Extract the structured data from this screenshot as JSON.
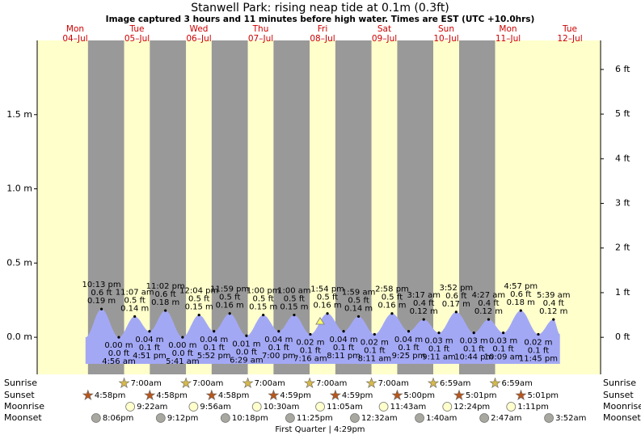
{
  "chart_data": {
    "type": "tide",
    "title": "Stanwell Park: rising  neap tide at 0.1m (0.3ft)",
    "subtitle": "Image captured 3 hours and 11 minutes before high water. Times are EST (UTC +10.0hrs)",
    "days": [
      {
        "weekday": "Mon",
        "date": "04–Jul"
      },
      {
        "weekday": "Tue",
        "date": "05–Jul"
      },
      {
        "weekday": "Wed",
        "date": "06–Jul"
      },
      {
        "weekday": "Thu",
        "date": "07–Jul"
      },
      {
        "weekday": "Fri",
        "date": "08–Jul"
      },
      {
        "weekday": "Sat",
        "date": "09–Jul"
      },
      {
        "weekday": "Sun",
        "date": "10–Jul"
      },
      {
        "weekday": "Mon",
        "date": "11–Jul"
      },
      {
        "weekday": "Tue",
        "date": "12–Jul"
      }
    ],
    "ylim": [
      -0.25,
      2.0
    ],
    "yticks": [
      {
        "value": 0,
        "label": "0.0 m"
      },
      {
        "value": 0.5,
        "label": "0.5 m"
      },
      {
        "value": 1,
        "label": "1.0 m"
      },
      {
        "value": 1.5,
        "label": "1.5 m"
      }
    ],
    "y2lim": [
      -0.83,
      6.65
    ],
    "y2ticks": [
      {
        "value": 0,
        "label": "0 ft"
      },
      {
        "value": 1,
        "label": "1 ft"
      },
      {
        "value": 2,
        "label": "2 ft"
      },
      {
        "value": 3,
        "label": "3 ft"
      },
      {
        "value": 4,
        "label": "4 ft"
      },
      {
        "value": 5,
        "label": "5 ft"
      },
      {
        "value": 6,
        "label": "6 ft"
      }
    ],
    "color": "#a3a8f5",
    "tides": [
      {
        "time": "10:13 pm",
        "value": 0.19,
        "value_label": "0.19 m",
        "ft_label": "0.6 ft"
      },
      {
        "time": "4:56 am",
        "value": 0.0,
        "value_label": "0.00 m",
        "ft_label": "0.0 ft"
      },
      {
        "time": "11:07 am",
        "value": 0.14,
        "value_label": "0.14 m",
        "ft_label": "0.5 ft"
      },
      {
        "time": "4:51 pm",
        "value": 0.04,
        "value_label": "0.04 m",
        "ft_label": "0.1 ft"
      },
      {
        "time": "11:02 pm",
        "value": 0.18,
        "value_label": "0.18 m",
        "ft_label": "0.6 ft"
      },
      {
        "time": "5:41 am",
        "value": 0.0,
        "value_label": "0.00 m",
        "ft_label": "0.0 ft"
      },
      {
        "time": "12:04 pm",
        "value": 0.15,
        "value_label": "0.15 m",
        "ft_label": "0.5 ft"
      },
      {
        "time": "5:52 pm",
        "value": 0.04,
        "value_label": "0.04 m",
        "ft_label": "0.1 ft"
      },
      {
        "time": "11:59 pm",
        "value": 0.16,
        "value_label": "0.16 m",
        "ft_label": "0.5 ft"
      },
      {
        "time": "6:29 am",
        "value": 0.01,
        "value_label": "0.01 m",
        "ft_label": "0.0 ft"
      },
      {
        "time": "1:00 pm",
        "value": 0.15,
        "value_label": "0.15 m",
        "ft_label": "0.5 ft"
      },
      {
        "time": "7:00 pm",
        "value": 0.04,
        "value_label": "0.04 m",
        "ft_label": "0.1 ft"
      },
      {
        "time": "1:00 am",
        "value": 0.15,
        "value_label": "0.15 m",
        "ft_label": "0.5 ft"
      },
      {
        "time": "7:16 am",
        "value": 0.02,
        "value_label": "0.02 m",
        "ft_label": "0.1 ft"
      },
      {
        "time": "1:54 pm",
        "value": 0.16,
        "value_label": "0.16 m",
        "ft_label": "0.5 ft"
      },
      {
        "time": "8:11 pm",
        "value": 0.04,
        "value_label": "0.04 m",
        "ft_label": "0.1 ft"
      },
      {
        "time": "1:59 am",
        "value": 0.14,
        "value_label": "0.14 m",
        "ft_label": "0.5 ft"
      },
      {
        "time": "8:11 am",
        "value": 0.02,
        "value_label": "0.02 m",
        "ft_label": "0.1 ft"
      },
      {
        "time": "2:58 pm",
        "value": 0.16,
        "value_label": "0.16 m",
        "ft_label": "0.5 ft"
      },
      {
        "time": "9:25 pm",
        "value": 0.04,
        "value_label": "0.04 m",
        "ft_label": "0.1 ft"
      },
      {
        "time": "3:17 am",
        "value": 0.12,
        "value_label": "0.12 m",
        "ft_label": "0.4 ft"
      },
      {
        "time": "9:11 am",
        "value": 0.03,
        "value_label": "0.03 m",
        "ft_label": "0.1 ft"
      },
      {
        "time": "3:52 pm",
        "value": 0.17,
        "value_label": "0.17 m",
        "ft_label": "0.6 ft"
      },
      {
        "time": "10:44 pm",
        "value": 0.03,
        "value_label": "0.03 m",
        "ft_label": "0.1 ft"
      },
      {
        "time": "4:27 am",
        "value": 0.12,
        "value_label": "0.12 m",
        "ft_label": "0.4 ft"
      },
      {
        "time": "10:09 am",
        "value": 0.03,
        "value_label": "0.03 m",
        "ft_label": "0.1 ft"
      },
      {
        "time": "4:57 pm",
        "value": 0.18,
        "value_label": "0.18 m",
        "ft_label": "0.6 ft"
      },
      {
        "time": "11:45 pm",
        "value": 0.02,
        "value_label": "0.02 m",
        "ft_label": "0.1 ft"
      },
      {
        "time": "5:39 am",
        "value": 0.12,
        "value_label": "0.12 m",
        "ft_label": "0.4 ft"
      }
    ],
    "sun_moon": [
      {
        "name": "Sunrise",
        "color": "#d6b84c",
        "times": [
          "7:00am",
          "7:00am",
          "7:00am",
          "7:00am",
          "7:00am",
          "6:59am",
          "6:59am"
        ]
      },
      {
        "name": "Sunset",
        "color": "#b8561c",
        "times": [
          "4:58pm",
          "4:58pm",
          "4:58pm",
          "4:59pm",
          "4:59pm",
          "5:00pm",
          "5:01pm",
          "5:01pm"
        ]
      },
      {
        "name": "Moonrise",
        "color": "#ffffcc",
        "times": [
          "9:22am",
          "9:56am",
          "10:30am",
          "11:05am",
          "11:43am",
          "12:24pm",
          "1:11pm"
        ]
      },
      {
        "name": "Moonset",
        "color": "#a8a8a0",
        "times": [
          "8:06pm",
          "9:12pm",
          "10:18pm",
          "11:25pm",
          "12:32am",
          "1:40am",
          "2:47am",
          "3:52am"
        ]
      }
    ],
    "moon_phase": "First Quarter | 4:29pm"
  }
}
